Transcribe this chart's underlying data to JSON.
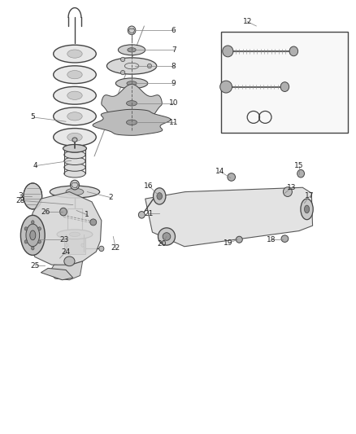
{
  "bg_color": "#ffffff",
  "line_color": "#444444",
  "text_color": "#222222",
  "fig_width": 4.38,
  "fig_height": 5.33,
  "dpi": 100,
  "label_data": {
    "1": {
      "txt": [
        0.245,
        0.505
      ],
      "part": [
        0.215,
        0.515
      ]
    },
    "2": {
      "txt": [
        0.31,
        0.545
      ],
      "part": [
        0.245,
        0.558
      ]
    },
    "3": {
      "txt": [
        0.058,
        0.548
      ],
      "part": [
        0.09,
        0.548
      ]
    },
    "4": {
      "txt": [
        0.1,
        0.618
      ],
      "part": [
        0.2,
        0.63
      ]
    },
    "5": {
      "txt": [
        0.092,
        0.73
      ],
      "part": [
        0.185,
        0.72
      ]
    },
    "6": {
      "txt": [
        0.488,
        0.93
      ],
      "part": [
        0.38,
        0.93
      ]
    },
    "7": {
      "txt": [
        0.488,
        0.885
      ],
      "part": [
        0.38,
        0.885
      ]
    },
    "8": {
      "txt": [
        0.488,
        0.848
      ],
      "part": [
        0.38,
        0.848
      ]
    },
    "9": {
      "txt": [
        0.488,
        0.808
      ],
      "part": [
        0.38,
        0.808
      ]
    },
    "10": {
      "txt": [
        0.488,
        0.762
      ],
      "part": [
        0.38,
        0.762
      ]
    },
    "11": {
      "txt": [
        0.488,
        0.718
      ],
      "part": [
        0.38,
        0.718
      ]
    },
    "12": {
      "txt": [
        0.695,
        0.95
      ],
      "part": [
        0.72,
        0.94
      ]
    },
    "13": {
      "txt": [
        0.82,
        0.568
      ],
      "part": [
        0.8,
        0.555
      ]
    },
    "14": {
      "txt": [
        0.618,
        0.605
      ],
      "part": [
        0.648,
        0.59
      ]
    },
    "15": {
      "txt": [
        0.84,
        0.618
      ],
      "part": [
        0.84,
        0.598
      ]
    },
    "16": {
      "txt": [
        0.418,
        0.572
      ],
      "part": [
        0.448,
        0.548
      ]
    },
    "17": {
      "txt": [
        0.87,
        0.548
      ],
      "part": [
        0.855,
        0.532
      ]
    },
    "18": {
      "txt": [
        0.762,
        0.448
      ],
      "part": [
        0.795,
        0.448
      ]
    },
    "19": {
      "txt": [
        0.642,
        0.44
      ],
      "part": [
        0.668,
        0.448
      ]
    },
    "20": {
      "txt": [
        0.455,
        0.438
      ],
      "part": [
        0.468,
        0.455
      ]
    },
    "21": {
      "txt": [
        0.418,
        0.508
      ],
      "part": [
        0.448,
        0.508
      ]
    },
    "22": {
      "txt": [
        0.325,
        0.428
      ],
      "part": [
        0.318,
        0.455
      ]
    },
    "23": {
      "txt": [
        0.18,
        0.448
      ],
      "part": [
        0.11,
        0.448
      ]
    },
    "24": {
      "txt": [
        0.185,
        0.42
      ],
      "part": [
        0.168,
        0.405
      ]
    },
    "25": {
      "txt": [
        0.098,
        0.388
      ],
      "part": [
        0.125,
        0.388
      ]
    },
    "26": {
      "txt": [
        0.128,
        0.512
      ],
      "part": [
        0.175,
        0.512
      ]
    },
    "28": {
      "txt": [
        0.058,
        0.538
      ],
      "part": [
        0.205,
        0.528
      ]
    }
  }
}
